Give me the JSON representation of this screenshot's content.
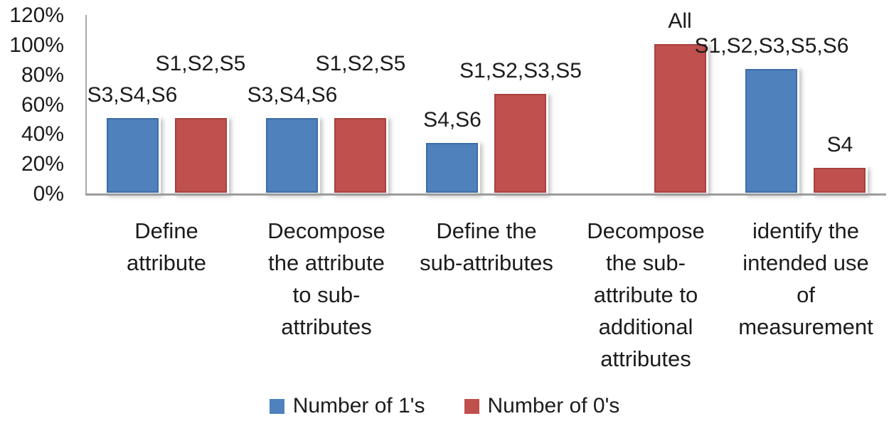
{
  "chart_data": {
    "type": "bar",
    "title": "",
    "xlabel": "",
    "ylabel": "",
    "categories": [
      "Define attribute",
      "Decompose the attribute to sub-attributes",
      "Define the sub-attributes",
      "Decompose the sub-attribute to additional attributes",
      "identify the intended use of measurement"
    ],
    "series": [
      {
        "name": "Number of 1's",
        "color": "#4F81BD",
        "border_color": "#3D6CA5",
        "values": [
          50,
          50,
          33.33,
          0,
          83.33
        ],
        "bar_labels": [
          "S3,S4,S6",
          "S3,S4,S6",
          "S4,S6",
          "",
          "S1,S2,S3,S5,S6"
        ]
      },
      {
        "name": "Number of 0's",
        "color": "#C0504D",
        "border_color": "#A7413E",
        "values": [
          50,
          50,
          66.67,
          100,
          16.67
        ],
        "bar_labels": [
          "S1,S2,S5",
          "S1,S2,S5",
          "S1,S2,S3,S5",
          "All",
          "S4"
        ]
      }
    ],
    "y_ticks": [
      "0%",
      "20%",
      "40%",
      "60%",
      "80%",
      "100%",
      "120%"
    ],
    "ylim": [
      0,
      120
    ],
    "grid": false,
    "legend_position": "bottom",
    "axis_color": "#9c9c9c",
    "text_color": "#1c1c1c",
    "background_color": "#ffffff"
  }
}
